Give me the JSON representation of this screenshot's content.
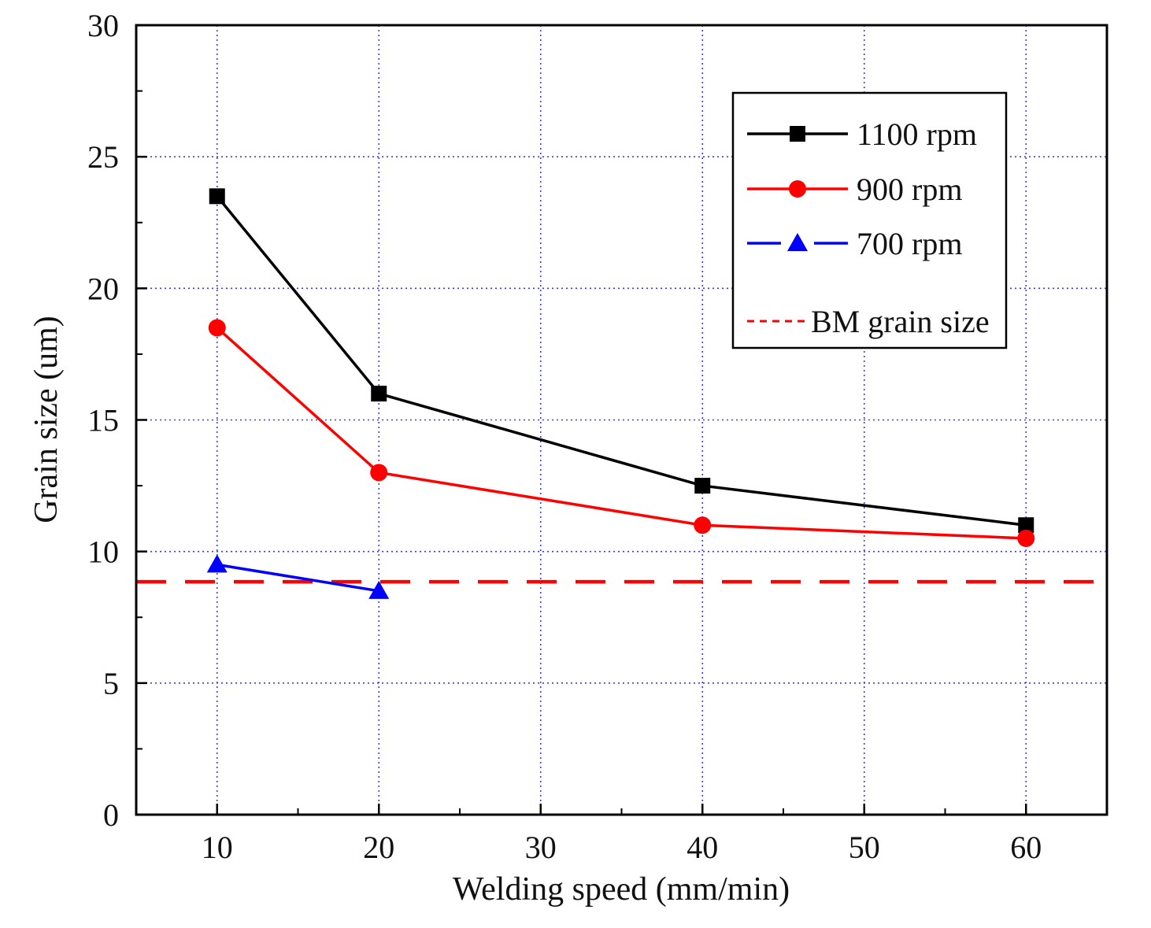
{
  "chart_data": {
    "type": "line",
    "title": "",
    "xlabel": "Welding speed (mm/min)",
    "ylabel": "Grain size (um)",
    "xlim": [
      5,
      65
    ],
    "ylim": [
      0,
      30
    ],
    "x_ticks": [
      10,
      20,
      30,
      40,
      50,
      60
    ],
    "x_tick_labels": [
      "10",
      "20",
      "30",
      "40",
      "50",
      "60"
    ],
    "y_ticks": [
      0,
      5,
      10,
      15,
      20,
      25,
      30
    ],
    "y_tick_labels": [
      "0",
      "5",
      "10",
      "15",
      "20",
      "25",
      "30"
    ],
    "grid": true,
    "legend_position": "top-right",
    "series": [
      {
        "name": "1100 rpm",
        "color": "#000000",
        "marker": "square",
        "line_style": "solid",
        "x": [
          10,
          20,
          40,
          60
        ],
        "y": [
          23.5,
          16.0,
          12.5,
          11.0
        ]
      },
      {
        "name": "900 rpm",
        "color": "#ff0000",
        "marker": "circle",
        "line_style": "solid",
        "x": [
          10,
          20,
          40,
          60
        ],
        "y": [
          18.5,
          13.0,
          11.0,
          10.5
        ]
      },
      {
        "name": "700 rpm",
        "color": "#0000ff",
        "marker": "triangle",
        "line_style": "solid",
        "x": [
          10,
          20
        ],
        "y": [
          9.5,
          8.5
        ]
      }
    ],
    "reference_lines": [
      {
        "name": "BM grain size",
        "orientation": "horizontal",
        "value": 8.85,
        "color": "#ff0000",
        "line_style": "dashed"
      }
    ]
  }
}
